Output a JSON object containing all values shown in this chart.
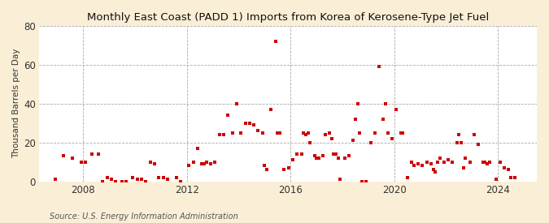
{
  "title": "Monthly East Coast (PADD 1) Imports from Korea of Kerosene-Type Jet Fuel",
  "ylabel": "Thousand Barrels per Day",
  "source": "Source: U.S. Energy Information Administration",
  "fig_facecolor": "#faefd6",
  "axes_facecolor": "#ffffff",
  "marker_color": "#cc0000",
  "grid_color": "#aaaaaa",
  "ylim": [
    0,
    80
  ],
  "yticks": [
    0,
    20,
    40,
    60,
    80
  ],
  "xlim_start": 2006.3,
  "xlim_end": 2025.5,
  "xticks": [
    2008,
    2012,
    2016,
    2020,
    2024
  ],
  "data": [
    [
      2006.917,
      1
    ],
    [
      2007.25,
      13
    ],
    [
      2007.583,
      12
    ],
    [
      2007.917,
      10
    ],
    [
      2008.083,
      10
    ],
    [
      2008.333,
      14
    ],
    [
      2008.583,
      14
    ],
    [
      2008.75,
      0
    ],
    [
      2008.917,
      2
    ],
    [
      2009.083,
      1
    ],
    [
      2009.25,
      0
    ],
    [
      2009.5,
      0
    ],
    [
      2009.667,
      0
    ],
    [
      2009.917,
      2
    ],
    [
      2010.083,
      1
    ],
    [
      2010.25,
      1
    ],
    [
      2010.417,
      0
    ],
    [
      2010.583,
      10
    ],
    [
      2010.75,
      9
    ],
    [
      2010.917,
      2
    ],
    [
      2011.083,
      2
    ],
    [
      2011.25,
      1
    ],
    [
      2011.583,
      2
    ],
    [
      2011.75,
      0
    ],
    [
      2012.083,
      8
    ],
    [
      2012.25,
      10
    ],
    [
      2012.417,
      17
    ],
    [
      2012.583,
      9
    ],
    [
      2012.667,
      9
    ],
    [
      2012.75,
      10
    ],
    [
      2012.917,
      9
    ],
    [
      2013.083,
      10
    ],
    [
      2013.25,
      24
    ],
    [
      2013.417,
      24
    ],
    [
      2013.583,
      34
    ],
    [
      2013.75,
      25
    ],
    [
      2013.917,
      40
    ],
    [
      2014.083,
      25
    ],
    [
      2014.25,
      30
    ],
    [
      2014.417,
      30
    ],
    [
      2014.583,
      29
    ],
    [
      2014.75,
      26
    ],
    [
      2014.917,
      25
    ],
    [
      2015.0,
      8
    ],
    [
      2015.083,
      6
    ],
    [
      2015.25,
      37
    ],
    [
      2015.417,
      72
    ],
    [
      2015.5,
      25
    ],
    [
      2015.583,
      25
    ],
    [
      2015.75,
      6
    ],
    [
      2015.917,
      7
    ],
    [
      2016.083,
      11
    ],
    [
      2016.25,
      14
    ],
    [
      2016.417,
      14
    ],
    [
      2016.5,
      25
    ],
    [
      2016.583,
      24
    ],
    [
      2016.667,
      25
    ],
    [
      2016.75,
      20
    ],
    [
      2016.917,
      13
    ],
    [
      2017.0,
      12
    ],
    [
      2017.083,
      12
    ],
    [
      2017.25,
      13
    ],
    [
      2017.333,
      24
    ],
    [
      2017.5,
      25
    ],
    [
      2017.583,
      22
    ],
    [
      2017.667,
      14
    ],
    [
      2017.75,
      14
    ],
    [
      2017.833,
      12
    ],
    [
      2017.917,
      1
    ],
    [
      2018.083,
      12
    ],
    [
      2018.25,
      13
    ],
    [
      2018.417,
      21
    ],
    [
      2018.5,
      32
    ],
    [
      2018.583,
      40
    ],
    [
      2018.667,
      25
    ],
    [
      2018.75,
      0
    ],
    [
      2018.917,
      0
    ],
    [
      2019.083,
      20
    ],
    [
      2019.25,
      25
    ],
    [
      2019.417,
      59
    ],
    [
      2019.583,
      32
    ],
    [
      2019.667,
      40
    ],
    [
      2019.75,
      25
    ],
    [
      2019.917,
      22
    ],
    [
      2020.083,
      37
    ],
    [
      2020.25,
      25
    ],
    [
      2020.333,
      25
    ],
    [
      2020.5,
      2
    ],
    [
      2020.667,
      10
    ],
    [
      2020.75,
      8
    ],
    [
      2020.917,
      9
    ],
    [
      2021.083,
      8
    ],
    [
      2021.25,
      10
    ],
    [
      2021.417,
      9
    ],
    [
      2021.5,
      6
    ],
    [
      2021.583,
      5
    ],
    [
      2021.667,
      10
    ],
    [
      2021.75,
      12
    ],
    [
      2021.917,
      10
    ],
    [
      2022.083,
      11
    ],
    [
      2022.25,
      10
    ],
    [
      2022.417,
      20
    ],
    [
      2022.5,
      24
    ],
    [
      2022.583,
      20
    ],
    [
      2022.667,
      7
    ],
    [
      2022.75,
      12
    ],
    [
      2022.917,
      10
    ],
    [
      2023.083,
      24
    ],
    [
      2023.25,
      19
    ],
    [
      2023.417,
      10
    ],
    [
      2023.5,
      10
    ],
    [
      2023.583,
      9
    ],
    [
      2023.667,
      10
    ],
    [
      2023.917,
      1
    ],
    [
      2024.083,
      10
    ],
    [
      2024.25,
      7
    ],
    [
      2024.417,
      6
    ],
    [
      2024.5,
      2
    ],
    [
      2024.667,
      2
    ]
  ]
}
